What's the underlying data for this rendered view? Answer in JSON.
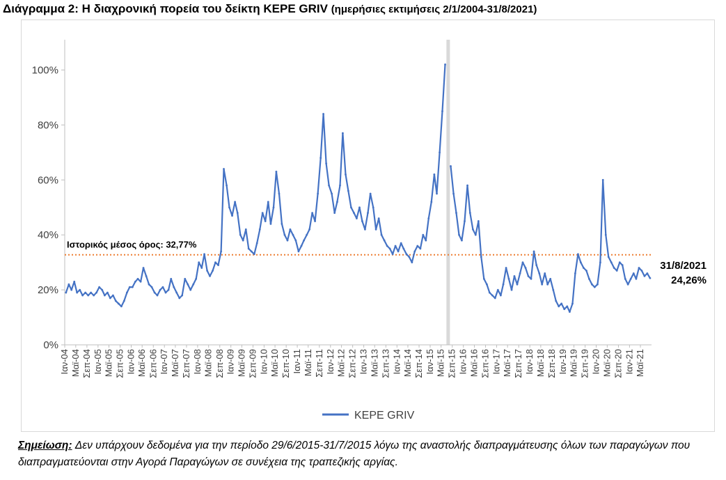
{
  "title": {
    "main": "Διάγραμμα 2: Η διαχρονική πορεία του δείκτη KEPE GRIV",
    "sub": "(ημερήσιες εκτιμήσεις 2/1/2004-31/8/2021)"
  },
  "note": {
    "label": "Σημείωση:",
    "text": "Δεν υπάρχουν δεδομένα για την περίοδο 29/6/2015-31/7/2015 λόγω της αναστολής διαπραγμάτευσης όλων των παραγώγων που διαπραγματεύονται στην Αγορά Παραγώγων σε συνέχεια της τραπεζικής αργίας."
  },
  "colors": {
    "series": "#4472c4",
    "mean_line": "#ed7d31",
    "gap_band": "#d9d9d9",
    "axis": "#bfbfbf"
  },
  "chart_data": {
    "type": "line",
    "title": "Διάγραμμα 2: Η διαχρονική πορεία του δείκτη KEPE GRIV",
    "y_unit": "%",
    "ylim": [
      0,
      110
    ],
    "yticks": [
      0,
      20,
      40,
      60,
      80,
      100
    ],
    "ytick_labels": [
      "0%",
      "20%",
      "40%",
      "60%",
      "80%",
      "100%"
    ],
    "x_range": [
      "2004-01",
      "2021-08"
    ],
    "xticks": [
      "2004-01",
      "2004-05",
      "2004-09",
      "2005-01",
      "2005-05",
      "2005-09",
      "2006-01",
      "2006-05",
      "2006-09",
      "2007-01",
      "2007-05",
      "2007-09",
      "2008-01",
      "2008-05",
      "2008-09",
      "2009-01",
      "2009-05",
      "2009-09",
      "2010-01",
      "2010-05",
      "2010-09",
      "2011-01",
      "2011-05",
      "2011-09",
      "2012-01",
      "2012-05",
      "2012-09",
      "2013-01",
      "2013-05",
      "2013-09",
      "2014-01",
      "2014-05",
      "2014-09",
      "2015-01",
      "2015-05",
      "2015-09",
      "2016-01",
      "2016-05",
      "2016-09",
      "2017-01",
      "2017-05",
      "2017-09",
      "2018-01",
      "2018-05",
      "2018-09",
      "2019-01",
      "2019-05",
      "2019-09",
      "2020-01",
      "2020-05",
      "2020-09",
      "2021-01",
      "2021-05"
    ],
    "xtick_labels": [
      "Ιαν-04",
      "Μαϊ-04",
      "Σεπ-04",
      "Ιαν-05",
      "Μαϊ-05",
      "Σεπ-05",
      "Ιαν-06",
      "Μαϊ-06",
      "Σεπ-06",
      "Ιαν-07",
      "Μαϊ-07",
      "Σεπ-07",
      "Ιαν-08",
      "Μαϊ-08",
      "Σεπ-08",
      "Ιαν-09",
      "Μαϊ-09",
      "Σεπ-09",
      "Ιαν-10",
      "Μαϊ-10",
      "Σεπ-10",
      "Ιαν-11",
      "Μαϊ-11",
      "Σεπ-11",
      "Ιαν-12",
      "Μαϊ-12",
      "Σεπ-12",
      "Ιαν-13",
      "Μαϊ-13",
      "Σεπ-13",
      "Ιαν-14",
      "Μαϊ-14",
      "Σεπ-14",
      "Ιαν-15",
      "Μαϊ-15",
      "Σεπ-15",
      "Ιαν-16",
      "Μαϊ-16",
      "Σεπ-16",
      "Ιαν-17",
      "Μαϊ-17",
      "Σεπ-17",
      "Ιαν-18",
      "Μαϊ-18",
      "Σεπ-18",
      "Ιαν-19",
      "Μαϊ-19",
      "Σεπ-19",
      "Ιαν-20",
      "Μαϊ-20",
      "Σεπ-20",
      "Ιαν-21",
      "Μαϊ-21"
    ],
    "legend": {
      "position": "bottom",
      "entries": [
        "KEPE GRIV"
      ]
    },
    "grid": false,
    "mean_line": {
      "value": 32.77,
      "label": "Ιστορικός μέσος όρος: 32,77%"
    },
    "gap_period": [
      "2015-06-29",
      "2015-07-31"
    ],
    "end_annotation": {
      "date_label": "31/8/2021",
      "value_label": "24,26%"
    },
    "series": [
      {
        "name": "KEPE GRIV",
        "points": [
          [
            "2004-01",
            19
          ],
          [
            "2004-02",
            22
          ],
          [
            "2004-03",
            20
          ],
          [
            "2004-04",
            23
          ],
          [
            "2004-05",
            19
          ],
          [
            "2004-06",
            20
          ],
          [
            "2004-07",
            18
          ],
          [
            "2004-08",
            19
          ],
          [
            "2004-09",
            18
          ],
          [
            "2004-10",
            19
          ],
          [
            "2004-11",
            18
          ],
          [
            "2004-12",
            19
          ],
          [
            "2005-01",
            21
          ],
          [
            "2005-02",
            20
          ],
          [
            "2005-03",
            18
          ],
          [
            "2005-04",
            19
          ],
          [
            "2005-05",
            17
          ],
          [
            "2005-06",
            18
          ],
          [
            "2005-07",
            16
          ],
          [
            "2005-08",
            15
          ],
          [
            "2005-09",
            14
          ],
          [
            "2005-10",
            16
          ],
          [
            "2005-11",
            19
          ],
          [
            "2005-12",
            21
          ],
          [
            "2006-01",
            21
          ],
          [
            "2006-02",
            23
          ],
          [
            "2006-03",
            24
          ],
          [
            "2006-04",
            23
          ],
          [
            "2006-05",
            28
          ],
          [
            "2006-06",
            25
          ],
          [
            "2006-07",
            22
          ],
          [
            "2006-08",
            21
          ],
          [
            "2006-09",
            19
          ],
          [
            "2006-10",
            18
          ],
          [
            "2006-11",
            20
          ],
          [
            "2006-12",
            21
          ],
          [
            "2007-01",
            19
          ],
          [
            "2007-02",
            20
          ],
          [
            "2007-03",
            24
          ],
          [
            "2007-04",
            21
          ],
          [
            "2007-05",
            19
          ],
          [
            "2007-06",
            17
          ],
          [
            "2007-07",
            18
          ],
          [
            "2007-08",
            24
          ],
          [
            "2007-09",
            22
          ],
          [
            "2007-10",
            20
          ],
          [
            "2007-11",
            22
          ],
          [
            "2007-12",
            24
          ],
          [
            "2008-01",
            30
          ],
          [
            "2008-02",
            28
          ],
          [
            "2008-03",
            33
          ],
          [
            "2008-04",
            27
          ],
          [
            "2008-05",
            25
          ],
          [
            "2008-06",
            27
          ],
          [
            "2008-07",
            30
          ],
          [
            "2008-08",
            29
          ],
          [
            "2008-09",
            34
          ],
          [
            "2008-10",
            64
          ],
          [
            "2008-11",
            58
          ],
          [
            "2008-12",
            50
          ],
          [
            "2009-01",
            47
          ],
          [
            "2009-02",
            52
          ],
          [
            "2009-03",
            48
          ],
          [
            "2009-04",
            40
          ],
          [
            "2009-05",
            38
          ],
          [
            "2009-06",
            42
          ],
          [
            "2009-07",
            35
          ],
          [
            "2009-08",
            34
          ],
          [
            "2009-09",
            33
          ],
          [
            "2009-10",
            37
          ],
          [
            "2009-11",
            42
          ],
          [
            "2009-12",
            48
          ],
          [
            "2010-01",
            45
          ],
          [
            "2010-02",
            52
          ],
          [
            "2010-03",
            44
          ],
          [
            "2010-04",
            50
          ],
          [
            "2010-05",
            63
          ],
          [
            "2010-06",
            55
          ],
          [
            "2010-07",
            44
          ],
          [
            "2010-08",
            40
          ],
          [
            "2010-09",
            38
          ],
          [
            "2010-10",
            42
          ],
          [
            "2010-11",
            40
          ],
          [
            "2010-12",
            38
          ],
          [
            "2011-01",
            34
          ],
          [
            "2011-02",
            36
          ],
          [
            "2011-03",
            38
          ],
          [
            "2011-04",
            40
          ],
          [
            "2011-05",
            42
          ],
          [
            "2011-06",
            48
          ],
          [
            "2011-07",
            45
          ],
          [
            "2011-08",
            55
          ],
          [
            "2011-09",
            68
          ],
          [
            "2011-10",
            84
          ],
          [
            "2011-11",
            66
          ],
          [
            "2011-12",
            58
          ],
          [
            "2012-01",
            55
          ],
          [
            "2012-02",
            48
          ],
          [
            "2012-03",
            52
          ],
          [
            "2012-04",
            58
          ],
          [
            "2012-05",
            77
          ],
          [
            "2012-06",
            62
          ],
          [
            "2012-07",
            56
          ],
          [
            "2012-08",
            50
          ],
          [
            "2012-09",
            48
          ],
          [
            "2012-10",
            46
          ],
          [
            "2012-11",
            50
          ],
          [
            "2012-12",
            45
          ],
          [
            "2013-01",
            42
          ],
          [
            "2013-02",
            48
          ],
          [
            "2013-03",
            55
          ],
          [
            "2013-04",
            50
          ],
          [
            "2013-05",
            42
          ],
          [
            "2013-06",
            46
          ],
          [
            "2013-07",
            40
          ],
          [
            "2013-08",
            38
          ],
          [
            "2013-09",
            36
          ],
          [
            "2013-10",
            35
          ],
          [
            "2013-11",
            33
          ],
          [
            "2013-12",
            36
          ],
          [
            "2014-01",
            34
          ],
          [
            "2014-02",
            37
          ],
          [
            "2014-03",
            35
          ],
          [
            "2014-04",
            33
          ],
          [
            "2014-05",
            32
          ],
          [
            "2014-06",
            30
          ],
          [
            "2014-07",
            34
          ],
          [
            "2014-08",
            36
          ],
          [
            "2014-09",
            35
          ],
          [
            "2014-10",
            40
          ],
          [
            "2014-11",
            38
          ],
          [
            "2014-12",
            46
          ],
          [
            "2015-01",
            52
          ],
          [
            "2015-02",
            62
          ],
          [
            "2015-03",
            55
          ],
          [
            "2015-04",
            70
          ],
          [
            "2015-05",
            85
          ],
          [
            "2015-06",
            102
          ],
          [
            "2015-08",
            65
          ],
          [
            "2015-09",
            55
          ],
          [
            "2015-10",
            48
          ],
          [
            "2015-11",
            40
          ],
          [
            "2015-12",
            38
          ],
          [
            "2016-01",
            45
          ],
          [
            "2016-02",
            58
          ],
          [
            "2016-03",
            48
          ],
          [
            "2016-04",
            42
          ],
          [
            "2016-05",
            40
          ],
          [
            "2016-06",
            45
          ],
          [
            "2016-07",
            32
          ],
          [
            "2016-08",
            24
          ],
          [
            "2016-09",
            22
          ],
          [
            "2016-10",
            19
          ],
          [
            "2016-11",
            18
          ],
          [
            "2016-12",
            17
          ],
          [
            "2017-01",
            20
          ],
          [
            "2017-02",
            18
          ],
          [
            "2017-03",
            22
          ],
          [
            "2017-04",
            28
          ],
          [
            "2017-05",
            24
          ],
          [
            "2017-06",
            20
          ],
          [
            "2017-07",
            25
          ],
          [
            "2017-08",
            22
          ],
          [
            "2017-09",
            26
          ],
          [
            "2017-10",
            30
          ],
          [
            "2017-11",
            28
          ],
          [
            "2017-12",
            25
          ],
          [
            "2018-01",
            24
          ],
          [
            "2018-02",
            34
          ],
          [
            "2018-03",
            29
          ],
          [
            "2018-04",
            26
          ],
          [
            "2018-05",
            22
          ],
          [
            "2018-06",
            26
          ],
          [
            "2018-07",
            22
          ],
          [
            "2018-08",
            24
          ],
          [
            "2018-09",
            20
          ],
          [
            "2018-10",
            16
          ],
          [
            "2018-11",
            14
          ],
          [
            "2018-12",
            15
          ],
          [
            "2019-01",
            13
          ],
          [
            "2019-02",
            14
          ],
          [
            "2019-03",
            12
          ],
          [
            "2019-04",
            15
          ],
          [
            "2019-05",
            26
          ],
          [
            "2019-06",
            33
          ],
          [
            "2019-07",
            30
          ],
          [
            "2019-08",
            28
          ],
          [
            "2019-09",
            27
          ],
          [
            "2019-10",
            24
          ],
          [
            "2019-11",
            22
          ],
          [
            "2019-12",
            21
          ],
          [
            "2020-01",
            22
          ],
          [
            "2020-02",
            30
          ],
          [
            "2020-03",
            60
          ],
          [
            "2020-04",
            40
          ],
          [
            "2020-05",
            32
          ],
          [
            "2020-06",
            30
          ],
          [
            "2020-07",
            28
          ],
          [
            "2020-08",
            27
          ],
          [
            "2020-09",
            30
          ],
          [
            "2020-10",
            29
          ],
          [
            "2020-11",
            24
          ],
          [
            "2020-12",
            22
          ],
          [
            "2021-01",
            24
          ],
          [
            "2021-02",
            26
          ],
          [
            "2021-03",
            24
          ],
          [
            "2021-04",
            28
          ],
          [
            "2021-05",
            27
          ],
          [
            "2021-06",
            25
          ],
          [
            "2021-07",
            26
          ],
          [
            "2021-08",
            24.26
          ]
        ]
      }
    ]
  }
}
